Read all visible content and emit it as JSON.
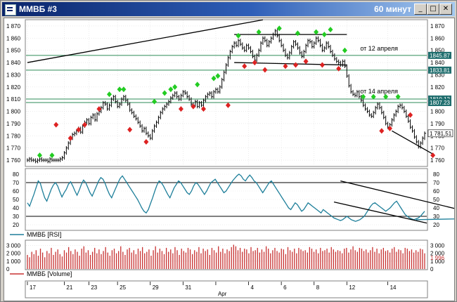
{
  "window": {
    "title": "ММВБ #3",
    "timeframe": "60 минут",
    "min_icon": "_",
    "max_icon": "□",
    "close_icon": "✕"
  },
  "price_axis": {
    "ticks": [
      "1 870",
      "1 860",
      "1 850",
      "1 840",
      "1 830",
      "1 820",
      "1 810",
      "1 800",
      "1 790",
      "1 780",
      "1 770",
      "1 760"
    ]
  },
  "price_tags": {
    "level_1": "1845.87",
    "level_2": "1833.81",
    "level_3": "1810.12",
    "level_4": "1807.23",
    "last": "1 781,51"
  },
  "annotations": {
    "april_12": "от 12 апреля",
    "april_14": "от 14 апреля"
  },
  "rsi": {
    "label": "ММВБ [RSI]",
    "ticks": [
      "80",
      "70",
      "60",
      "50",
      "40",
      "30",
      "20"
    ]
  },
  "volume": {
    "label": "ММВБ [Volume]",
    "ticks": [
      "3 000",
      "2 000",
      "1 000",
      "0"
    ],
    "last": "1 996"
  },
  "time_axis": {
    "ticks": [
      "17",
      "21",
      "23",
      "25",
      "29",
      "31",
      "Apr",
      "4",
      "6",
      "8",
      "12",
      "14"
    ],
    "month": "Apr"
  },
  "colors": {
    "price": "#000000",
    "rsi": "#1e7f9a",
    "volume": "#c83232",
    "up_marker": "#22cc22",
    "down_marker": "#dd2222",
    "level": "#2e8b57"
  },
  "chart_data": {
    "type": "line",
    "price": {
      "ylim": [
        1756,
        1874
      ],
      "levels": [
        1845.87,
        1833.81,
        1810.12,
        1807.23
      ],
      "values": [
        1760,
        1761,
        1760,
        1760,
        1759,
        1760,
        1761,
        1760,
        1760,
        1760,
        1759,
        1761,
        1760,
        1760,
        1760,
        1760,
        1761,
        1762,
        1766,
        1770,
        1774,
        1778,
        1781,
        1782,
        1784,
        1786,
        1783,
        1788,
        1791,
        1793,
        1790,
        1795,
        1797,
        1793,
        1798,
        1800,
        1803,
        1807,
        1806,
        1802,
        1805,
        1810,
        1812,
        1808,
        1804,
        1806,
        1810,
        1812,
        1809,
        1806,
        1801,
        1799,
        1796,
        1794,
        1791,
        1788,
        1784,
        1786,
        1782,
        1780,
        1778,
        1784,
        1788,
        1791,
        1795,
        1799,
        1802,
        1804,
        1806,
        1808,
        1811,
        1813,
        1815,
        1812,
        1810,
        1813,
        1816,
        1815,
        1812,
        1810,
        1806,
        1805,
        1808,
        1804,
        1807,
        1805,
        1809,
        1812,
        1814,
        1815,
        1812,
        1816,
        1818,
        1816,
        1820,
        1826,
        1832,
        1838,
        1844,
        1849,
        1853,
        1856,
        1854,
        1858,
        1855,
        1852,
        1850,
        1854,
        1852,
        1849,
        1845,
        1842,
        1846,
        1850,
        1856,
        1860,
        1858,
        1854,
        1857,
        1860,
        1863,
        1866,
        1862,
        1858,
        1854,
        1850,
        1846,
        1844,
        1848,
        1853,
        1857,
        1855,
        1852,
        1848,
        1845,
        1849,
        1854,
        1858,
        1857,
        1853,
        1856,
        1860,
        1858,
        1854,
        1850,
        1852,
        1856,
        1853,
        1849,
        1846,
        1843,
        1841,
        1840,
        1838,
        1841,
        1837,
        1829,
        1821,
        1816,
        1814,
        1813,
        1816,
        1812,
        1809,
        1805,
        1802,
        1800,
        1797,
        1796,
        1799,
        1803,
        1806,
        1803,
        1799,
        1795,
        1790,
        1787,
        1789,
        1793,
        1797,
        1800,
        1804,
        1805,
        1803,
        1800,
        1796,
        1792,
        1787,
        1784,
        1779,
        1775,
        1771,
        1774,
        1778,
        1782
      ],
      "up_markers": [
        [
          6,
          1764
        ],
        [
          12,
          1764
        ],
        [
          40,
          1814
        ],
        [
          45,
          1818
        ],
        [
          47,
          1818
        ],
        [
          62,
          1808
        ],
        [
          67,
          1815
        ],
        [
          70,
          1818
        ],
        [
          72,
          1820
        ],
        [
          83,
          1822
        ],
        [
          91,
          1827
        ],
        [
          93,
          1829
        ],
        [
          103,
          1862
        ],
        [
          113,
          1865
        ],
        [
          123,
          1868
        ],
        [
          132,
          1864
        ],
        [
          141,
          1865
        ],
        [
          145,
          1863
        ],
        [
          148,
          1867
        ],
        [
          155,
          1850
        ],
        [
          164,
          1812
        ],
        [
          169,
          1812
        ],
        [
          175,
          1812
        ],
        [
          181,
          1812
        ]
      ],
      "down_markers": [
        [
          14,
          1789
        ],
        [
          21,
          1778
        ],
        [
          25,
          1785
        ],
        [
          28,
          1789
        ],
        [
          35,
          1802
        ],
        [
          50,
          1785
        ],
        [
          58,
          1775
        ],
        [
          75,
          1802
        ],
        [
          81,
          1804
        ],
        [
          86,
          1802
        ],
        [
          98,
          1805
        ],
        [
          106,
          1837
        ],
        [
          111,
          1840
        ],
        [
          116,
          1834
        ],
        [
          126,
          1837
        ],
        [
          131,
          1838
        ],
        [
          136,
          1841
        ],
        [
          144,
          1838
        ],
        [
          152,
          1835
        ],
        [
          173,
          1784
        ],
        [
          177,
          1786
        ],
        [
          187,
          1797
        ],
        [
          198,
          1764
        ]
      ],
      "trendlines": [
        {
          "from": [
            0,
            1840
          ],
          "to": [
            115,
            1875
          ]
        },
        {
          "from": [
            101,
            1863
          ],
          "to": [
            156,
            1863
          ]
        },
        {
          "from": [
            101,
            1840
          ],
          "to": [
            156,
            1838
          ]
        },
        {
          "from": [
            178,
            1784
          ],
          "to": [
            198,
            1765
          ]
        }
      ]
    },
    "rsi": {
      "ylim": [
        15,
        85
      ],
      "levels": [
        70,
        30
      ],
      "values": [
        46,
        42,
        49,
        56,
        64,
        72,
        69,
        60,
        52,
        48,
        55,
        62,
        67,
        70,
        66,
        59,
        53,
        58,
        62,
        68,
        71,
        66,
        60,
        55,
        61,
        68,
        73,
        70,
        64,
        58,
        54,
        60,
        66,
        72,
        76,
        74,
        69,
        62,
        56,
        52,
        58,
        64,
        70,
        75,
        78,
        74,
        70,
        66,
        62,
        58,
        54,
        50,
        45,
        40,
        36,
        34,
        38,
        45,
        52,
        60,
        67,
        72,
        70,
        66,
        61,
        56,
        52,
        58,
        64,
        68,
        72,
        70,
        66,
        62,
        58,
        56,
        60,
        66,
        70,
        68,
        64,
        60,
        56,
        60,
        65,
        70,
        72,
        74,
        70,
        66,
        62,
        58,
        60,
        64,
        68,
        72,
        75,
        78,
        80,
        78,
        74,
        72,
        76,
        79,
        76,
        72,
        70,
        66,
        62,
        58,
        62,
        66,
        70,
        72,
        68,
        64,
        60,
        56,
        52,
        48,
        44,
        40,
        38,
        42,
        46,
        44,
        40,
        36,
        38,
        42,
        46,
        44,
        42,
        40,
        38,
        36,
        34,
        38,
        36,
        34,
        32,
        30,
        28,
        27,
        26,
        25,
        26,
        28,
        30,
        28,
        26,
        25,
        24,
        25,
        26,
        28,
        30,
        34,
        38,
        42,
        45,
        46,
        44,
        42,
        40,
        38,
        36,
        38,
        40,
        43,
        46,
        48,
        44,
        40,
        36,
        32,
        30,
        28,
        27,
        26,
        27,
        28,
        30,
        33,
        36
      ],
      "trendlines": [
        {
          "from": [
            145,
            72
          ],
          "to": [
            200,
            38
          ]
        },
        {
          "from": [
            142,
            47
          ],
          "to": [
            185,
            22
          ]
        },
        {
          "from": [
            180,
            26
          ],
          "to": [
            200,
            27
          ]
        }
      ]
    },
    "volume": {
      "ylim": [
        0,
        3500
      ],
      "values": [
        1800,
        1500,
        2200,
        1900,
        2400,
        1700,
        2600,
        2100,
        1500,
        2300,
        2000,
        2700,
        1800,
        2200,
        2500,
        1900,
        1600,
        2400,
        2100,
        2800,
        2300,
        1900,
        2500,
        2200,
        1700,
        2600,
        2900,
        2100,
        2400,
        1800,
        2200,
        2700,
        2000,
        2500,
        1900,
        2300,
        2800,
        2100,
        1700,
        2400,
        2600,
        2000,
        2300,
        2900,
        2200,
        1800,
        2500,
        2700,
        2100,
        2400,
        1900,
        2600,
        2300,
        2800,
        2000,
        2200,
        2500,
        1700,
        2400,
        2900,
        2100,
        2600,
        2300,
        1900,
        2700,
        2200,
        2500,
        2000,
        2800,
        2400,
        1800,
        2600,
        2300,
        2100,
        2700,
        2500,
        1900,
        2400,
        2200,
        2800,
        2000,
        2600,
        2300,
        2500,
        1800,
        2700,
        2400,
        2100,
        2900,
        2200,
        2600,
        2000,
        2500,
        2300,
        2800,
        3100,
        2900,
        2400,
        2700,
        2200,
        2600,
        2500,
        2000,
        2800,
        2300,
        2400,
        2700,
        2100,
        2500,
        2200,
        2900,
        2600,
        2000,
        2400,
        2700,
        2300,
        2100,
        2600,
        2500,
        1900,
        2800,
        2400,
        2200,
        2600,
        2000,
        2700,
        2500,
        2300,
        2400,
        2100,
        2800,
        2600,
        2200,
        2500,
        2000,
        2700,
        2300,
        2400,
        2600,
        2100,
        2800,
        2500,
        2200,
        2400,
        2300,
        2000,
        2600,
        2700,
        2100,
        2500,
        2900,
        2400,
        2200,
        2700,
        2600,
        2300,
        2500,
        2100,
        2400,
        2800,
        2200,
        2600,
        2000,
        2500,
        2700,
        2300,
        2400,
        2100,
        2600,
        2800,
        2200,
        2500,
        2400,
        2000,
        2700,
        2600,
        2300,
        2500,
        2100,
        2400,
        2200,
        2600,
        2500,
        1996
      ]
    }
  }
}
